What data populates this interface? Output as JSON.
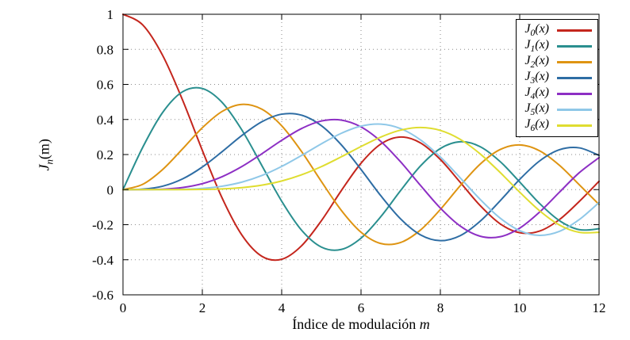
{
  "figure": {
    "xlabel_text": "Índice de modulación ",
    "xlabel_var": "m",
    "ylabel_sym": "J",
    "ylabel_sub": "n",
    "ylabel_tail": "(m)"
  },
  "chart_data": {
    "type": "line",
    "title": "",
    "xlabel": "Índice de modulación m",
    "ylabel": "J_n(m)",
    "xlim": [
      0,
      12
    ],
    "ylim": [
      -0.6,
      1
    ],
    "xticks": [
      0,
      2,
      4,
      6,
      8,
      10,
      12
    ],
    "yticks": [
      -0.6,
      -0.4,
      -0.2,
      0,
      0.2,
      0.4,
      0.6,
      0.8,
      1
    ],
    "grid": true,
    "legend_position": "top-right",
    "x": [
      0,
      0.5,
      1,
      1.5,
      2,
      2.5,
      3,
      3.5,
      4,
      4.5,
      5,
      5.5,
      6,
      6.5,
      7,
      7.5,
      8,
      8.5,
      9,
      9.5,
      10,
      10.5,
      11,
      11.5,
      12
    ],
    "series": [
      {
        "name": "J_0(x)",
        "sym": "J",
        "sub": "0",
        "tail": "(x)",
        "color": "#c4261d",
        "values": [
          1,
          0.9385,
          0.7652,
          0.5118,
          0.2239,
          -0.0484,
          -0.2601,
          -0.3801,
          -0.3971,
          -0.3205,
          -0.1776,
          -0.0068,
          0.1506,
          0.2601,
          0.3001,
          0.2663,
          0.1717,
          0.0419,
          -0.0903,
          -0.1939,
          -0.2459,
          -0.2366,
          -0.1712,
          -0.0677,
          0.0477
        ]
      },
      {
        "name": "J_1(x)",
        "sym": "J",
        "sub": "1",
        "tail": "(x)",
        "color": "#2a8f8f",
        "values": [
          0,
          0.2423,
          0.4401,
          0.5579,
          0.5767,
          0.4971,
          0.3391,
          0.1374,
          -0.066,
          -0.2311,
          -0.3276,
          -0.3414,
          -0.2767,
          -0.1538,
          -0.0047,
          0.1352,
          0.2346,
          0.2731,
          0.2453,
          0.1613,
          0.0435,
          -0.0789,
          -0.1768,
          -0.2284,
          -0.2234
        ]
      },
      {
        "name": "J_2(x)",
        "sym": "J",
        "sub": "2",
        "tail": "(x)",
        "color": "#de9412",
        "values": [
          0,
          0.0306,
          0.1149,
          0.2321,
          0.3528,
          0.4461,
          0.4861,
          0.4586,
          0.3641,
          0.2178,
          0.0466,
          -0.1173,
          -0.2429,
          -0.3074,
          -0.3014,
          -0.2303,
          -0.113,
          0.0223,
          0.1448,
          0.2279,
          0.2546,
          0.2216,
          0.139,
          0.0279,
          -0.0849
        ]
      },
      {
        "name": "J_3(x)",
        "sym": "J",
        "sub": "3",
        "tail": "(x)",
        "color": "#2e6da4",
        "values": [
          0,
          0.0026,
          0.0196,
          0.061,
          0.1289,
          0.2166,
          0.3091,
          0.3868,
          0.4302,
          0.4247,
          0.3648,
          0.2561,
          0.1148,
          -0.0353,
          -0.1676,
          -0.2581,
          -0.2911,
          -0.2626,
          -0.1809,
          -0.0653,
          0.0584,
          0.1633,
          0.2273,
          0.2381,
          0.1951
        ]
      },
      {
        "name": "J_4(x)",
        "sym": "J",
        "sub": "4",
        "tail": "(x)",
        "color": "#8d2fc4",
        "values": [
          0,
          0.0002,
          0.0025,
          0.0118,
          0.034,
          0.0738,
          0.132,
          0.2044,
          0.2811,
          0.3484,
          0.3912,
          0.3967,
          0.3576,
          0.2748,
          0.1578,
          0.0238,
          -0.1054,
          -0.2077,
          -0.2655,
          -0.2691,
          -0.2196,
          -0.1283,
          -0.015,
          0.0963,
          0.1825
        ]
      },
      {
        "name": "J_5(x)",
        "sym": "J",
        "sub": "5",
        "tail": "(x)",
        "color": "#8fc8e8",
        "values": [
          0,
          0,
          0.0002,
          0.0018,
          0.007,
          0.0195,
          0.043,
          0.0804,
          0.1321,
          0.1947,
          0.2611,
          0.3209,
          0.3621,
          0.3736,
          0.3479,
          0.2835,
          0.1858,
          0.0671,
          -0.055,
          -0.1613,
          -0.2341,
          -0.2611,
          -0.2383,
          -0.1711,
          -0.0735
        ]
      },
      {
        "name": "J_6(x)",
        "sym": "J",
        "sub": "6",
        "tail": "(x)",
        "color": "#dfdd30",
        "values": [
          0,
          0,
          0,
          0.0002,
          0.0012,
          0.0042,
          0.0114,
          0.0254,
          0.0491,
          0.0843,
          0.131,
          0.1868,
          0.2458,
          0.2999,
          0.3392,
          0.3541,
          0.3376,
          0.2867,
          0.2043,
          0.0993,
          -0.0145,
          -0.1203,
          -0.2016,
          -0.2437,
          -0.2437
        ]
      }
    ]
  }
}
